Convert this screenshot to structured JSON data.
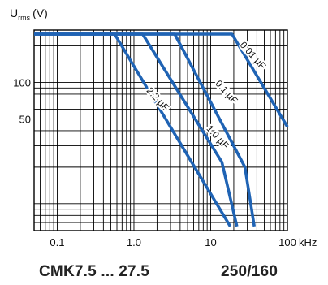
{
  "chart_data": {
    "type": "line",
    "x_scale": "log",
    "y_scale": "log",
    "xlim": [
      0.05,
      100
    ],
    "ylim": [
      6,
      270
    ],
    "x_unit": "kHz",
    "y_title_main": "U",
    "y_title_sub": "rms",
    "y_title_unit": "(V)",
    "x_ticks": [
      {
        "value": 0.1,
        "label": "0.1"
      },
      {
        "value": 1,
        "label": "1.0"
      },
      {
        "value": 10,
        "label": "10"
      },
      {
        "value": 100,
        "label": "100"
      }
    ],
    "y_ticks": [
      {
        "value": 100,
        "label": "100"
      },
      {
        "value": 50,
        "label": "50"
      }
    ],
    "grid": true,
    "line_color": "#1f63b4",
    "series": [
      {
        "name": "2.2 µF",
        "points": [
          [
            0.05,
            250
          ],
          [
            0.56,
            250
          ],
          [
            18,
            6.5
          ]
        ],
        "label_at": [
          1.9,
          70
        ]
      },
      {
        "name": "1.0 µF",
        "points": [
          [
            0.05,
            250
          ],
          [
            1.3,
            250
          ],
          [
            14,
            22
          ],
          [
            22,
            6.5
          ]
        ],
        "label_at": [
          11.5,
          34
        ]
      },
      {
        "name": "0.1 µF",
        "points": [
          [
            0.05,
            250
          ],
          [
            3.4,
            250
          ],
          [
            28,
            20
          ],
          [
            37,
            6.5
          ]
        ],
        "label_at": [
          15,
          80
        ]
      },
      {
        "name": "0.01 µF",
        "points": [
          [
            0.05,
            250
          ],
          [
            19,
            250
          ],
          [
            100,
            43
          ]
        ],
        "label_at": [
          33,
          160
        ]
      }
    ]
  },
  "footer": {
    "series_name": "CMK7.5 ... 27.5",
    "rating": "250/160"
  }
}
